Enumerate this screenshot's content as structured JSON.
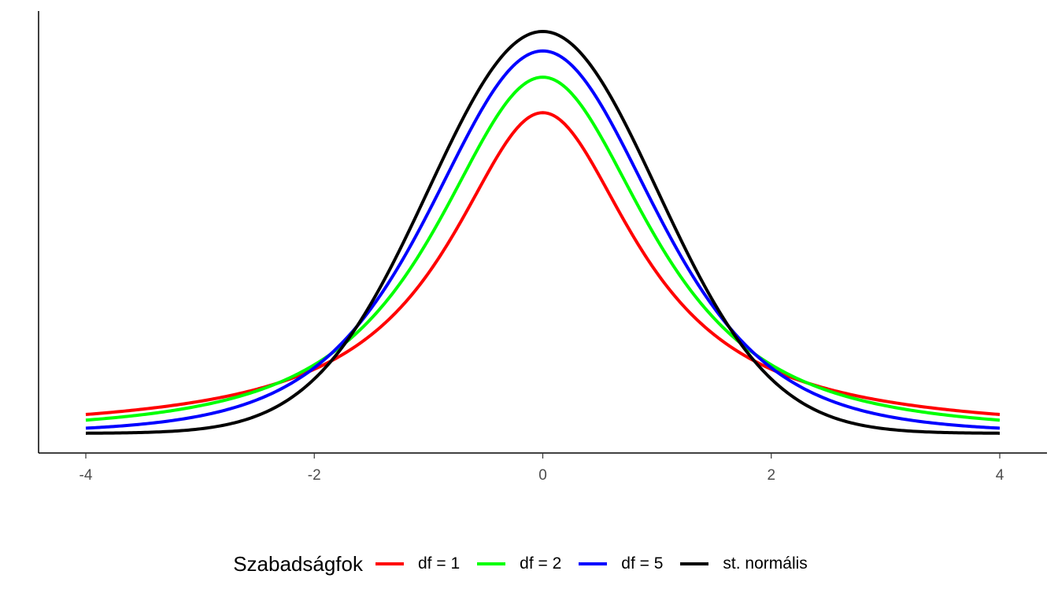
{
  "chart_data": {
    "type": "line",
    "title": "",
    "xlabel": "",
    "ylabel": "",
    "xlim": [
      -4,
      4
    ],
    "x_ticks": [
      -4,
      -2,
      0,
      2,
      4
    ],
    "x_tick_labels": [
      "-4",
      "-2",
      "0",
      "2",
      "4"
    ],
    "grid": false,
    "legend": {
      "title": "Szabadságfok",
      "placement": "bottom"
    },
    "series": [
      {
        "name": "df = 1",
        "color": "#ff0000",
        "distribution": "t",
        "df": 1,
        "x": [
          -4,
          -3,
          -2,
          -1.5,
          -1,
          -0.5,
          0,
          0.5,
          1,
          1.5,
          2,
          3,
          4
        ],
        "y": [
          0.0187,
          0.0318,
          0.0637,
          0.0979,
          0.1592,
          0.2546,
          0.3183,
          0.2546,
          0.1592,
          0.0979,
          0.0637,
          0.0318,
          0.0187
        ]
      },
      {
        "name": "df = 2",
        "color": "#00ff00",
        "distribution": "t",
        "df": 2,
        "x": [
          -4,
          -3,
          -2,
          -1.5,
          -1,
          -0.5,
          0,
          0.5,
          1,
          1.5,
          2,
          3,
          4
        ],
        "y": [
          0.0131,
          0.0274,
          0.068,
          0.114,
          0.1925,
          0.2962,
          0.3536,
          0.2962,
          0.1925,
          0.114,
          0.068,
          0.0274,
          0.0131
        ]
      },
      {
        "name": "df = 5",
        "color": "#0000ff",
        "distribution": "t",
        "df": 5,
        "x": [
          -4,
          -3,
          -2,
          -1.5,
          -1,
          -0.5,
          0,
          0.5,
          1,
          1.5,
          2,
          3,
          4
        ],
        "y": [
          0.0051,
          0.0173,
          0.0651,
          0.1245,
          0.2197,
          0.3295,
          0.3796,
          0.3295,
          0.2197,
          0.1245,
          0.0651,
          0.0173,
          0.0051
        ]
      },
      {
        "name": "st. normális",
        "color": "#000000",
        "distribution": "normal",
        "df": null,
        "x": [
          -4,
          -3,
          -2,
          -1.5,
          -1,
          -0.5,
          0,
          0.5,
          1,
          1.5,
          2,
          3,
          4
        ],
        "y": [
          0.0001,
          0.0044,
          0.054,
          0.1295,
          0.242,
          0.3521,
          0.3989,
          0.3521,
          0.242,
          0.1295,
          0.054,
          0.0044,
          0.0001
        ]
      }
    ]
  }
}
